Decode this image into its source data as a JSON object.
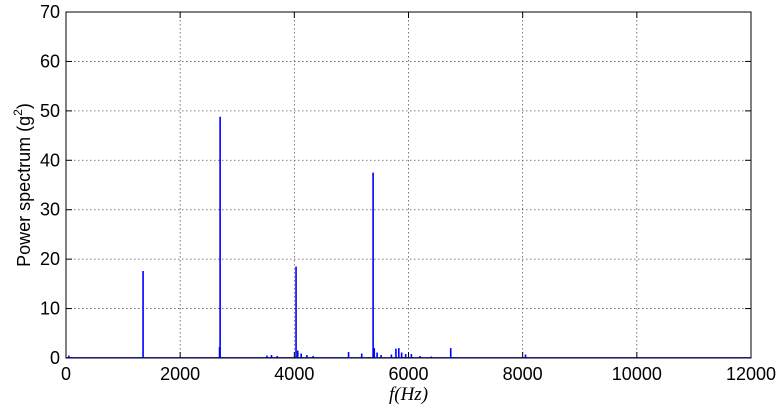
{
  "chart_data": {
    "type": "line",
    "xlabel": "f(Hz)",
    "ylabel": "Power spectrum (g",
    "ylabel_superscript": "2",
    "ylabel_suffix": ")",
    "xlim": [
      0,
      12000
    ],
    "ylim": [
      0,
      70
    ],
    "xticks": [
      0,
      2000,
      4000,
      6000,
      8000,
      10000,
      12000
    ],
    "yticks": [
      0,
      10,
      20,
      30,
      40,
      50,
      60,
      70
    ],
    "grid": true,
    "series": [
      {
        "color": "#0000ff",
        "peaks": [
          {
            "x": 50,
            "y": 0.5
          },
          {
            "x": 1350,
            "y": 17.6
          },
          {
            "x": 2690,
            "y": 2.2
          },
          {
            "x": 2700,
            "y": 48.8
          },
          {
            "x": 3520,
            "y": 0.5
          },
          {
            "x": 3600,
            "y": 0.6
          },
          {
            "x": 3700,
            "y": 0.4
          },
          {
            "x": 4030,
            "y": 18.5
          },
          {
            "x": 4060,
            "y": 1.5
          },
          {
            "x": 4120,
            "y": 0.9
          },
          {
            "x": 4220,
            "y": 0.6
          },
          {
            "x": 4330,
            "y": 0.4
          },
          {
            "x": 4950,
            "y": 1.2
          },
          {
            "x": 5180,
            "y": 0.9
          },
          {
            "x": 5380,
            "y": 37.5
          },
          {
            "x": 5400,
            "y": 2.0
          },
          {
            "x": 5450,
            "y": 1.1
          },
          {
            "x": 5520,
            "y": 0.6
          },
          {
            "x": 5700,
            "y": 0.7
          },
          {
            "x": 5780,
            "y": 1.9
          },
          {
            "x": 5830,
            "y": 2.0
          },
          {
            "x": 5880,
            "y": 1.1
          },
          {
            "x": 5950,
            "y": 0.8
          },
          {
            "x": 6050,
            "y": 0.8
          },
          {
            "x": 6200,
            "y": 0.4
          },
          {
            "x": 6400,
            "y": 0.3
          },
          {
            "x": 6740,
            "y": 2.0
          },
          {
            "x": 8050,
            "y": 0.7
          }
        ]
      }
    ]
  }
}
